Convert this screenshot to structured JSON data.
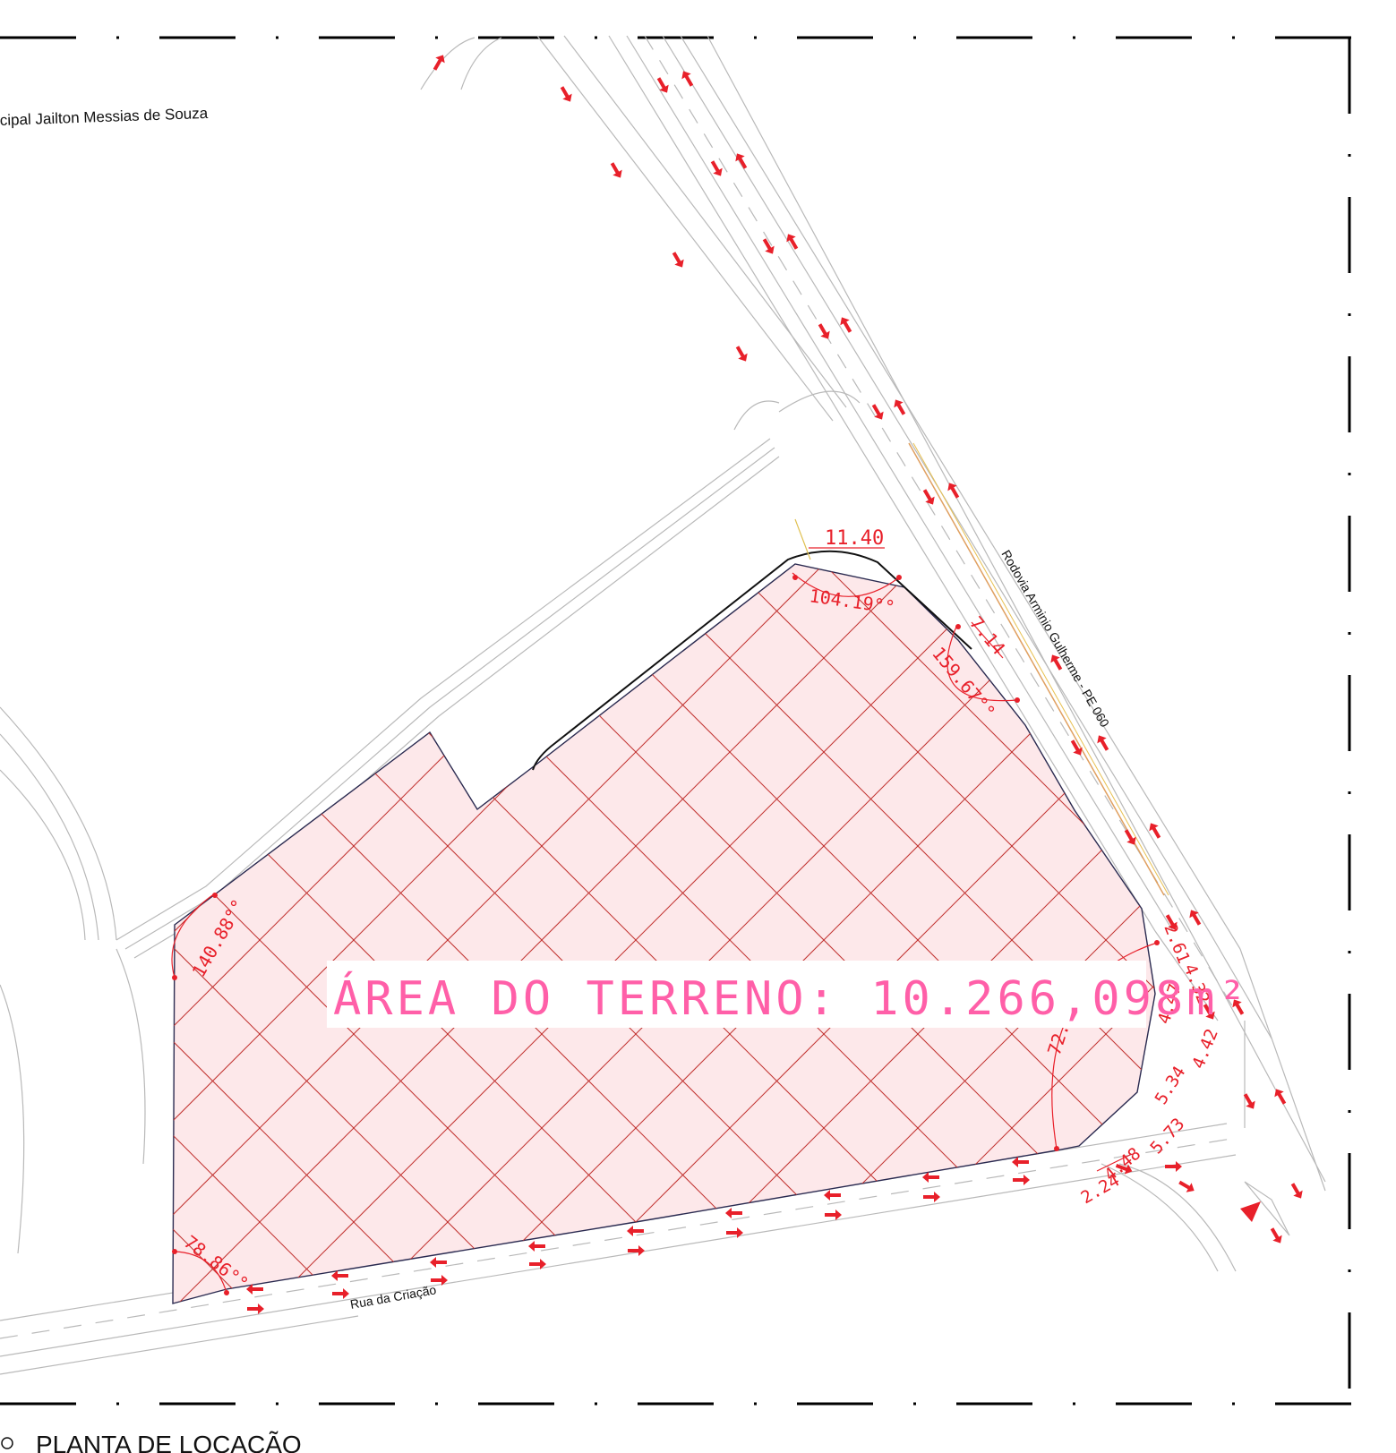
{
  "drawing": {
    "school_label": "cipal Jailton Messias de Souza",
    "road_east_label": "Rodovia Arminio Gulherme - PE 060",
    "road_south_label": "Rua da Criação",
    "area_label": "ÁREA DO TERRENO: 10.266,098m²",
    "title": "PLANTA DE LOCAÇÃO"
  },
  "dimensions": {
    "d_top": "11.40",
    "d_ne": "7.14",
    "d_e1": "2.61",
    "d_e2": "4.32",
    "d_e3": "4.47",
    "d_e4": "4.42",
    "d_e5": "5.34",
    "d_e6": "5.73",
    "d_e7": "4.48",
    "d_e8": "2.24"
  },
  "angles": {
    "a_top": "104.19°°",
    "a_ne": "159.67°°",
    "a_w": "140.88°°",
    "a_e": "72.75°°",
    "a_sw": "78.86°°"
  },
  "colors": {
    "boundary_fill": "#fde8ea",
    "hatch": "#c0302e",
    "dimension": "#e8202a",
    "area_text": "#ff5fa8",
    "road_lines": "#b9b9b9",
    "frame": "#000000"
  }
}
